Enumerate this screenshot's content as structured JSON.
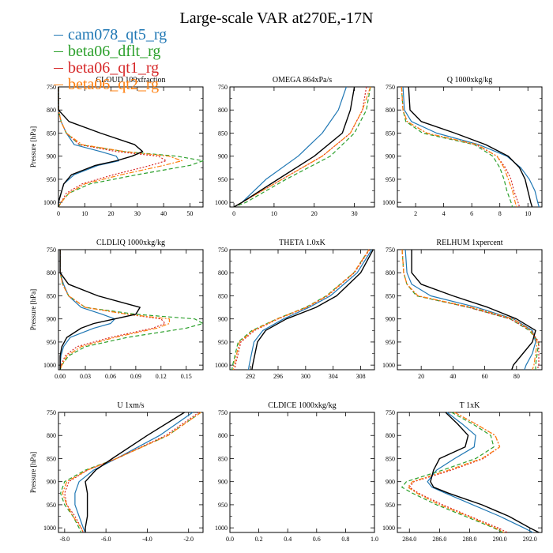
{
  "figure_title": "Large-scale VAR at270E,-17N",
  "legend": [
    {
      "label": "cam078_qt5_rg",
      "color": "#1f77b4",
      "dash": "solid"
    },
    {
      "label": "beta06_dflt_rg",
      "color": "#2ca02c",
      "dash": "dash"
    },
    {
      "label": "beta06_qt1_rg",
      "color": "#d62728",
      "dash": "dot"
    },
    {
      "label": "beta06_qt2_rg",
      "color": "#ff7f0e",
      "dash": "dashdot"
    }
  ],
  "black_series_color": "#000000",
  "chart_data": [
    {
      "type": "line",
      "title": "CLOUD 100xfraction",
      "ylabel": "Pressure [hPa]",
      "xlim": [
        0,
        55
      ],
      "ylim": [
        750,
        1010
      ],
      "xticks": [
        "0",
        "10",
        "20",
        "30",
        "40",
        "50"
      ],
      "yticks": [
        "750",
        "800",
        "850",
        "900",
        "950",
        "1000"
      ],
      "p": [
        750,
        800,
        825,
        850,
        875,
        890,
        900,
        910,
        920,
        940,
        960,
        980,
        1000,
        1010
      ],
      "series": [
        {
          "x": [
            0,
            0,
            1,
            3,
            6,
            16,
            22,
            23,
            15,
            6,
            2,
            1,
            0,
            0
          ],
          "style": 0
        },
        {
          "x": [
            0,
            0,
            1,
            3,
            8,
            25,
            45,
            55,
            50,
            30,
            12,
            4,
            1,
            0
          ],
          "style": 1
        },
        {
          "x": [
            0,
            0,
            1,
            3,
            8,
            22,
            38,
            41,
            35,
            21,
            9,
            3,
            1,
            0
          ],
          "style": 2
        },
        {
          "x": [
            0,
            0,
            1,
            3,
            9,
            25,
            42,
            47,
            40,
            24,
            10,
            4,
            1,
            0
          ],
          "style": 3
        },
        {
          "x": [
            0,
            0,
            4,
            16,
            29,
            32,
            28,
            22,
            14,
            5,
            2,
            1,
            0,
            0
          ],
          "style": "black"
        }
      ]
    },
    {
      "type": "line",
      "title": "OMEGA 864xPa/s",
      "ylabel": "",
      "xlim": [
        -1,
        35
      ],
      "ylim": [
        750,
        1010
      ],
      "xticks": [
        "0",
        "10",
        "20",
        "30"
      ],
      "yticks": [
        "750",
        "800",
        "850",
        "900",
        "950",
        "1000"
      ],
      "p": [
        750,
        800,
        850,
        900,
        950,
        1000,
        1010
      ],
      "series": [
        {
          "x": [
            28,
            26,
            22,
            16,
            8,
            2,
            0
          ],
          "style": 0
        },
        {
          "x": [
            34,
            33,
            30,
            24,
            13,
            3,
            0
          ],
          "style": 1
        },
        {
          "x": [
            33,
            32,
            29,
            22,
            12,
            2,
            0
          ],
          "style": 2
        },
        {
          "x": [
            34,
            32,
            29,
            22,
            12,
            2,
            0
          ],
          "style": 3
        },
        {
          "x": [
            30,
            29,
            27,
            20,
            11,
            2,
            0
          ],
          "style": "black"
        }
      ]
    },
    {
      "type": "line",
      "title": "Q 1000xkg/kg",
      "ylabel": "",
      "xlim": [
        0.7,
        11
      ],
      "ylim": [
        750,
        1010
      ],
      "xticks": [
        "2",
        "4",
        "6",
        "8",
        "10"
      ],
      "yticks": [
        "750",
        "800",
        "850",
        "900",
        "950",
        "1000"
      ],
      "p": [
        750,
        800,
        825,
        850,
        875,
        900,
        925,
        950,
        975,
        1000,
        1010
      ],
      "series": [
        {
          "x": [
            1.1,
            1.2,
            1.7,
            3.5,
            6.5,
            8.5,
            9.5,
            10.1,
            10.5,
            10.7,
            10.8
          ],
          "style": 0
        },
        {
          "x": [
            1.0,
            1.1,
            1.3,
            2.5,
            6.2,
            7.5,
            8.0,
            8.3,
            8.5,
            8.8,
            8.9
          ],
          "style": 1
        },
        {
          "x": [
            1.0,
            1.1,
            1.4,
            2.8,
            6.3,
            7.8,
            8.4,
            8.8,
            9.0,
            9.3,
            9.4
          ],
          "style": 2
        },
        {
          "x": [
            1.0,
            1.1,
            1.4,
            2.8,
            6.4,
            7.8,
            8.3,
            8.6,
            8.9,
            9.1,
            9.2
          ],
          "style": 3
        },
        {
          "x": [
            1.5,
            1.6,
            2.4,
            4.8,
            7.0,
            8.6,
            9.4,
            9.8,
            10.0,
            10.2,
            10.3
          ],
          "style": "black"
        }
      ]
    },
    {
      "type": "line",
      "title": "CLDLIQ 1000xkg/kg",
      "ylabel": "Pressure [hPa]",
      "xlim": [
        -0.002,
        0.17
      ],
      "ylim": [
        750,
        1010
      ],
      "xticks": [
        "0.00",
        "0.03",
        "0.06",
        "0.09",
        "0.12",
        "0.15"
      ],
      "yticks": [
        "750",
        "800",
        "850",
        "900",
        "950",
        "1000"
      ],
      "p": [
        750,
        800,
        825,
        850,
        875,
        890,
        900,
        910,
        920,
        940,
        960,
        980,
        1000,
        1010
      ],
      "series": [
        {
          "x": [
            0,
            0,
            0.004,
            0.01,
            0.025,
            0.05,
            0.065,
            0.06,
            0.04,
            0.012,
            0.004,
            0.001,
            0,
            0
          ],
          "style": 0
        },
        {
          "x": [
            0,
            0,
            0.003,
            0.01,
            0.03,
            0.09,
            0.16,
            0.17,
            0.15,
            0.08,
            0.03,
            0.01,
            0.002,
            0
          ],
          "style": 1
        },
        {
          "x": [
            0,
            0,
            0.003,
            0.01,
            0.03,
            0.08,
            0.12,
            0.125,
            0.11,
            0.06,
            0.02,
            0.006,
            0.001,
            0
          ],
          "style": 2
        },
        {
          "x": [
            0,
            0,
            0.003,
            0.01,
            0.03,
            0.08,
            0.13,
            0.13,
            0.115,
            0.065,
            0.025,
            0.008,
            0.002,
            0
          ],
          "style": 3
        },
        {
          "x": [
            0,
            0,
            0.01,
            0.045,
            0.095,
            0.09,
            0.065,
            0.04,
            0.025,
            0.008,
            0.002,
            0,
            0,
            0
          ],
          "style": "black"
        }
      ]
    },
    {
      "type": "line",
      "title": "THETA 1.0xK",
      "ylabel": "",
      "xlim": [
        289,
        310
      ],
      "ylim": [
        750,
        1010
      ],
      "xticks": [
        "292",
        "296",
        "300",
        "304",
        "308"
      ],
      "yticks": [
        "750",
        "800",
        "850",
        "900",
        "950",
        "1000"
      ],
      "p": [
        750,
        800,
        850,
        875,
        900,
        925,
        950,
        1000,
        1010
      ],
      "series": [
        {
          "x": [
            309.6,
            307.5,
            303.6,
            300.5,
            296.8,
            293.8,
            292.5,
            291.8,
            291.7
          ],
          "style": 0
        },
        {
          "x": [
            309.2,
            307.0,
            303.0,
            300.0,
            295.8,
            292.2,
            290.2,
            289.4,
            289.3
          ],
          "style": 1
        },
        {
          "x": [
            309.3,
            307.1,
            303.2,
            300.2,
            296.0,
            292.6,
            290.6,
            289.8,
            289.7
          ],
          "style": 2
        },
        {
          "x": [
            309.2,
            307.0,
            303.1,
            300.1,
            295.9,
            292.4,
            290.4,
            289.6,
            289.5
          ],
          "style": 3
        },
        {
          "x": [
            309.8,
            308.0,
            304.5,
            301.5,
            297.2,
            294.2,
            293.0,
            292.3,
            292.2
          ],
          "style": "black"
        }
      ]
    },
    {
      "type": "line",
      "title": "RELHUM 1xpercent",
      "ylabel": "",
      "xlim": [
        5,
        96
      ],
      "ylim": [
        750,
        1010
      ],
      "xticks": [
        "20",
        "40",
        "60",
        "80"
      ],
      "yticks": [
        "750",
        "800",
        "850",
        "900",
        "950",
        "1000"
      ],
      "p": [
        750,
        800,
        825,
        850,
        875,
        900,
        925,
        950,
        975,
        1000,
        1010
      ],
      "series": [
        {
          "x": [
            10,
            11,
            14,
            26,
            55,
            78,
            90,
            92,
            90,
            86,
            85
          ],
          "style": 0
        },
        {
          "x": [
            8,
            9,
            11,
            17,
            50,
            76,
            88,
            94,
            93,
            92,
            92
          ],
          "style": 1
        },
        {
          "x": [
            8,
            9,
            11,
            18,
            50,
            76,
            89,
            94,
            94,
            94,
            93
          ],
          "style": 2
        },
        {
          "x": [
            8,
            9,
            11,
            18,
            52,
            78,
            89,
            93,
            92,
            91,
            90
          ],
          "style": 3
        },
        {
          "x": [
            14,
            14,
            20,
            40,
            62,
            80,
            92,
            90,
            84,
            78,
            77
          ],
          "style": "black"
        }
      ]
    },
    {
      "type": "line",
      "title": "U 1xm/s",
      "ylabel": "Pressure [hPa]",
      "xlim": [
        -8.3,
        -1.3
      ],
      "ylim": [
        750,
        1010
      ],
      "xticks": [
        "-8.0",
        "-6.0",
        "-4.0",
        "-2.0"
      ],
      "yticks": [
        "750",
        "800",
        "850",
        "900",
        "950",
        "1000"
      ],
      "p": [
        750,
        800,
        850,
        875,
        900,
        925,
        950,
        975,
        1000,
        1010
      ],
      "series": [
        {
          "x": [
            -1.8,
            -3.4,
            -5.5,
            -6.6,
            -7.3,
            -7.5,
            -7.5,
            -7.3,
            -7.1,
            -7.0
          ],
          "style": 0
        },
        {
          "x": [
            -1.4,
            -3.0,
            -5.5,
            -7.0,
            -8.0,
            -8.2,
            -8.0,
            -7.6,
            -7.3,
            -7.2
          ],
          "style": 1
        },
        {
          "x": [
            -1.5,
            -3.1,
            -5.5,
            -6.9,
            -7.8,
            -8.0,
            -7.9,
            -7.5,
            -7.2,
            -7.1
          ],
          "style": 2
        },
        {
          "x": [
            -1.4,
            -3.0,
            -5.5,
            -6.9,
            -7.9,
            -8.1,
            -7.9,
            -7.6,
            -7.2,
            -7.1
          ],
          "style": 3
        },
        {
          "x": [
            -2.2,
            -4.0,
            -5.7,
            -6.5,
            -7.0,
            -6.9,
            -6.9,
            -6.9,
            -7.0,
            -7.0
          ],
          "style": "black"
        }
      ]
    },
    {
      "type": "line",
      "title": "CLDICE 1000xkg/kg",
      "ylabel": "",
      "xlim": [
        0,
        1
      ],
      "ylim": [
        750,
        1010
      ],
      "xticks": [
        "0.0",
        "0.2",
        "0.4",
        "0.6",
        "0.8",
        "1.0"
      ],
      "yticks": [
        "750",
        "800",
        "850",
        "900",
        "950",
        "1000"
      ],
      "p": [],
      "series": []
    },
    {
      "type": "line",
      "title": "T 1xK",
      "ylabel": "",
      "xlim": [
        283.2,
        292.8
      ],
      "ylim": [
        750,
        1010
      ],
      "xticks": [
        "284.0",
        "286.0",
        "288.0",
        "290.0",
        "292.0"
      ],
      "yticks": [
        "750",
        "800",
        "850",
        "900",
        "950",
        "1000"
      ],
      "p": [
        750,
        775,
        800,
        825,
        850,
        875,
        900,
        912,
        925,
        950,
        975,
        1000,
        1010
      ],
      "series": [
        {
          "x": [
            286.5,
            287.5,
            288.4,
            288.3,
            287.0,
            285.8,
            285.2,
            285.5,
            286.4,
            288.2,
            290.0,
            291.6,
            292.2
          ],
          "style": 0
        },
        {
          "x": [
            286.8,
            288.2,
            289.4,
            289.6,
            288.4,
            286.2,
            283.8,
            283.5,
            284.2,
            285.8,
            287.7,
            289.6,
            290.2
          ],
          "style": 1
        },
        {
          "x": [
            287.0,
            288.4,
            289.7,
            290.0,
            288.9,
            286.8,
            284.3,
            284.0,
            284.6,
            286.2,
            288.0,
            289.9,
            290.5
          ],
          "style": 2
        },
        {
          "x": [
            287.0,
            288.4,
            289.7,
            290.0,
            288.8,
            286.6,
            284.2,
            283.9,
            284.5,
            286.0,
            287.9,
            289.7,
            290.3
          ],
          "style": 3
        },
        {
          "x": [
            286.4,
            287.2,
            287.9,
            287.7,
            286.0,
            285.6,
            285.4,
            285.6,
            286.6,
            288.8,
            290.6,
            292.0,
            292.6
          ],
          "style": "black"
        }
      ]
    }
  ]
}
